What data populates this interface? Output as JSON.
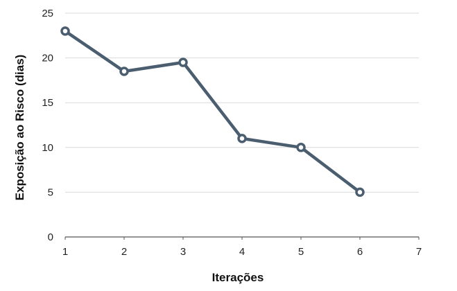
{
  "chart_data": {
    "type": "line",
    "title": "",
    "xlabel": "Iterações",
    "ylabel": "Exposição ao Risco (dias)",
    "x": [
      1,
      2,
      3,
      4,
      5,
      6
    ],
    "series": [
      {
        "values": [
          23,
          18.5,
          19.5,
          11,
          10,
          5
        ]
      }
    ],
    "xlim": [
      1,
      7
    ],
    "ylim": [
      0,
      25
    ],
    "x_ticks": [
      "1",
      "2",
      "3",
      "4",
      "5",
      "6",
      "7"
    ],
    "y_ticks": [
      "0",
      "5",
      "10",
      "15",
      "20",
      "25"
    ],
    "x_tick_values": [
      1,
      2,
      3,
      4,
      5,
      6,
      7
    ],
    "y_tick_values": [
      0,
      5,
      10,
      15,
      20,
      25
    ],
    "grid": "horizontal",
    "legend": "none",
    "colors": {
      "line": "#4a5e70",
      "marker_fill": "#ffffff",
      "grid": "#d9d9d9",
      "axis": "#555555"
    }
  }
}
